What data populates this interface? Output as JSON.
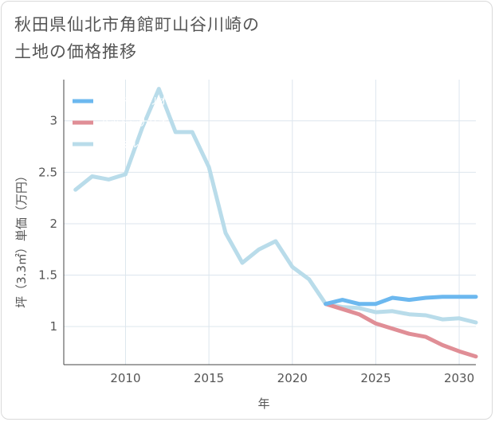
{
  "title_lines": [
    "秋田県仙北市角館町山谷川崎の",
    "土地の価格推移"
  ],
  "chart_data": {
    "type": "line",
    "xlabel": "年",
    "ylabel": "坪（3.3㎡）単価（万円）",
    "xlim": [
      2006.3,
      2031
    ],
    "ylim": [
      0.63,
      3.4
    ],
    "xticks": [
      2010,
      2015,
      2020,
      2025,
      2030
    ],
    "yticks": [
      1,
      1.5,
      2,
      2.5,
      3
    ],
    "ytick_labels": [
      "1",
      "1.5",
      "2",
      "2.5",
      "3"
    ],
    "grid": true,
    "legend_position": "top-left",
    "series": [
      {
        "name": "グッドシナリオ",
        "color": "#6cb8ef",
        "x": [
          2022,
          2023,
          2024,
          2025,
          2026,
          2027,
          2028,
          2029,
          2030,
          2031
        ],
        "y": [
          1.22,
          1.26,
          1.22,
          1.22,
          1.28,
          1.26,
          1.28,
          1.29,
          1.29,
          1.29
        ]
      },
      {
        "name": "バッドシナリオ",
        "color": "#e08e96",
        "x": [
          2022,
          2023,
          2024,
          2025,
          2026,
          2027,
          2028,
          2029,
          2030,
          2031
        ],
        "y": [
          1.22,
          1.17,
          1.12,
          1.03,
          0.98,
          0.93,
          0.9,
          0.82,
          0.76,
          0.71
        ]
      },
      {
        "name": "ノーマルシナリオ",
        "color": "#b9dcea",
        "x": [
          2007,
          2008,
          2009,
          2010,
          2011,
          2012,
          2013,
          2014,
          2015,
          2016,
          2017,
          2018,
          2019,
          2020,
          2021,
          2022,
          2023,
          2024,
          2025,
          2026,
          2027,
          2028,
          2029,
          2030,
          2031
        ],
        "y": [
          2.33,
          2.46,
          2.43,
          2.48,
          2.93,
          3.31,
          2.89,
          2.89,
          2.55,
          1.91,
          1.62,
          1.75,
          1.83,
          1.58,
          1.46,
          1.22,
          1.19,
          1.18,
          1.14,
          1.15,
          1.12,
          1.11,
          1.07,
          1.08,
          1.04
        ]
      }
    ]
  }
}
